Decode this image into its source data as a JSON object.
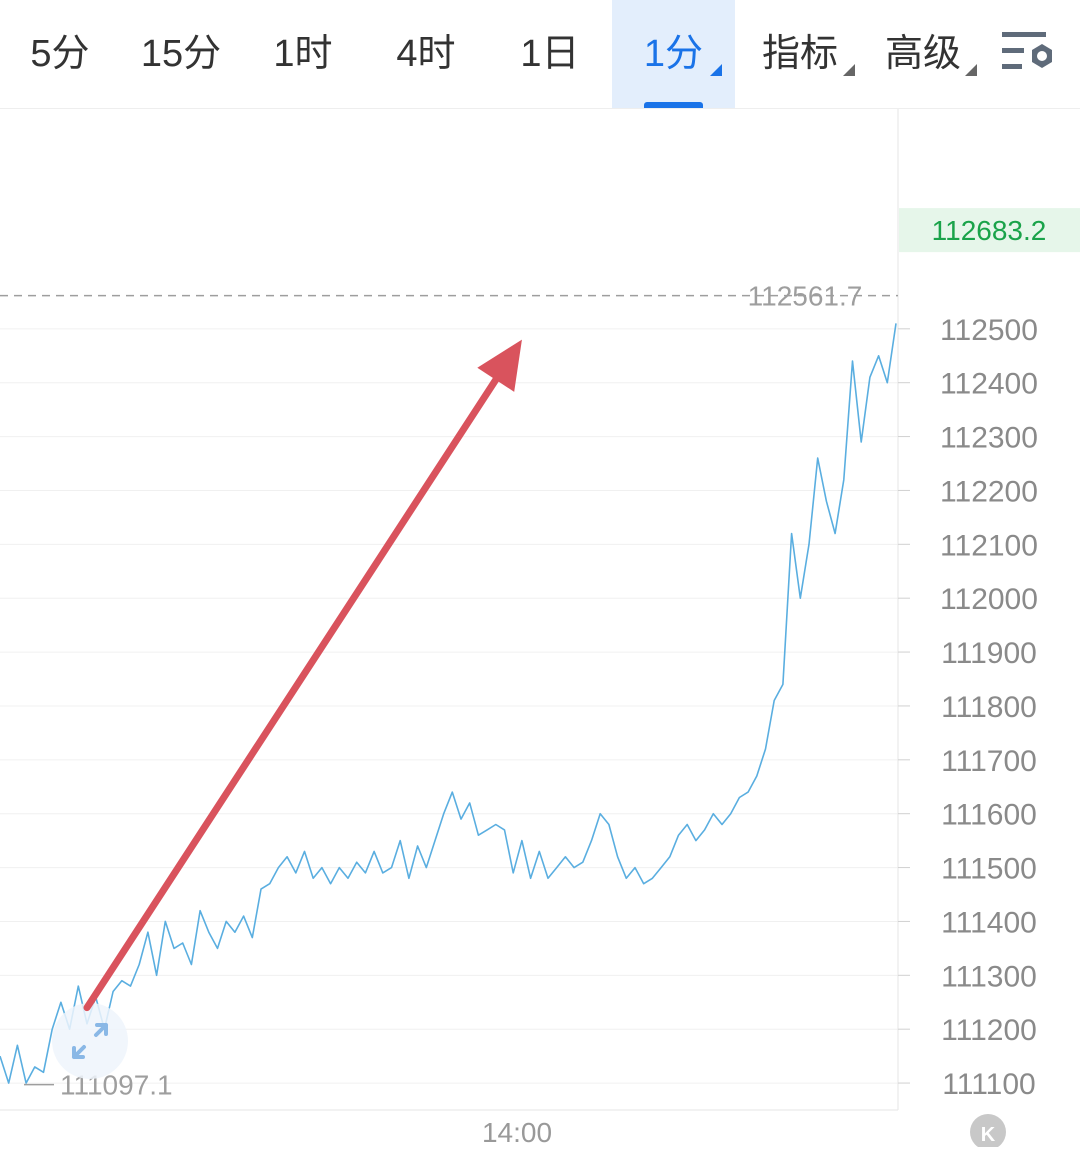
{
  "toolbar": {
    "tabs": [
      {
        "label": "5分"
      },
      {
        "label": "15分"
      },
      {
        "label": "1时"
      },
      {
        "label": "4时"
      },
      {
        "label": "1日"
      },
      {
        "label": "1分"
      }
    ],
    "active_tab": "1分",
    "menus": [
      {
        "label": "指标"
      },
      {
        "label": "高级"
      }
    ],
    "settings_icon": "chart-settings-icon",
    "accent_color": "#1a73e8"
  },
  "chart_data": {
    "type": "line",
    "x_tick_labels": [
      "14:00"
    ],
    "ylim": [
      111050,
      112650
    ],
    "yticks": [
      111100,
      111200,
      111300,
      111400,
      111500,
      111600,
      111700,
      111800,
      111900,
      112000,
      112100,
      112200,
      112300,
      112400,
      112500
    ],
    "y_tick_labels": [
      "111100",
      "111200",
      "111300",
      "111400",
      "111500",
      "111600",
      "111700",
      "111800",
      "111900",
      "112000",
      "112100",
      "112200",
      "112300",
      "112400",
      "112500"
    ],
    "grid": true,
    "line_color": "#5aaee0",
    "series": [
      {
        "values": [
          111150,
          111100,
          111170,
          111100,
          111130,
          111120,
          111200,
          111250,
          111200,
          111280,
          111210,
          111260,
          111200,
          111270,
          111290,
          111280,
          111320,
          111380,
          111300,
          111400,
          111350,
          111360,
          111320,
          111420,
          111380,
          111350,
          111400,
          111380,
          111410,
          111370,
          111460,
          111470,
          111500,
          111520,
          111490,
          111530,
          111480,
          111500,
          111470,
          111500,
          111480,
          111510,
          111490,
          111530,
          111490,
          111500,
          111550,
          111480,
          111540,
          111500,
          111550,
          111600,
          111640,
          111590,
          111620,
          111560,
          111570,
          111580,
          111570,
          111490,
          111550,
          111480,
          111530,
          111480,
          111500,
          111520,
          111500,
          111510,
          111550,
          111600,
          111580,
          111520,
          111480,
          111500,
          111470,
          111480,
          111500,
          111520,
          111560,
          111580,
          111550,
          111570,
          111600,
          111580,
          111600,
          111630,
          111640,
          111670,
          111720,
          111810,
          111840,
          112120,
          112000,
          112100,
          112260,
          112180,
          112120,
          112220,
          112440,
          112290,
          112410,
          112450,
          112400,
          112510
        ]
      }
    ],
    "reference_lines": [
      {
        "value": 112561.7,
        "label": "112561.7"
      }
    ],
    "current_price": {
      "value": 112683.2,
      "label": "112683.2",
      "color": "#1aa34a"
    },
    "low_marker": {
      "value": 111097.1,
      "label": "111097.1"
    },
    "annotation": {
      "type": "arrow",
      "color": "#d9535d",
      "from": {
        "x": 10,
        "y": 111240
      },
      "to": {
        "x": 60,
        "y": 112480
      }
    }
  }
}
